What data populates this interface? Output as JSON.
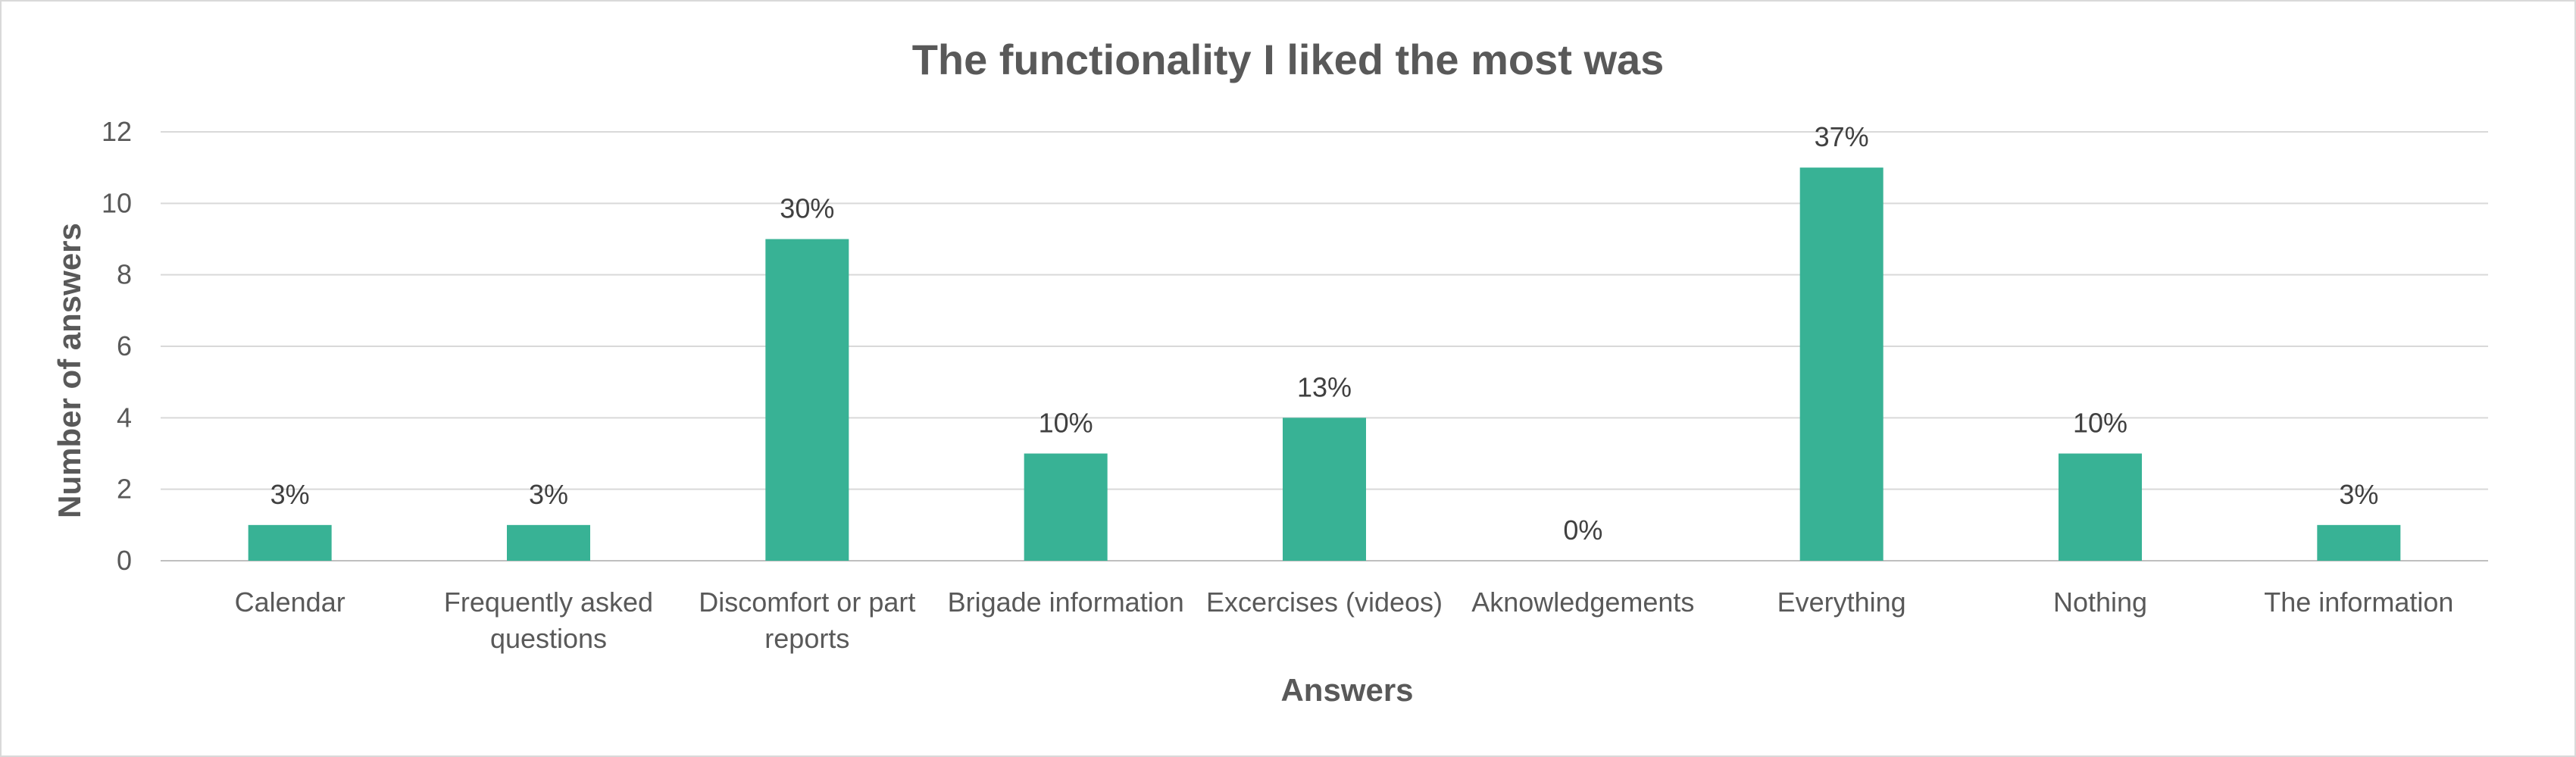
{
  "chart_data": {
    "type": "bar",
    "title": "The functionality I liked the most was",
    "xlabel": "Answers",
    "ylabel": "Number of answers",
    "ylim": [
      0,
      12
    ],
    "yticks": [
      "0",
      "2",
      "4",
      "6",
      "8",
      "10",
      "12"
    ],
    "grid": true,
    "legend": "none",
    "bar_color": "#38B295",
    "categories": [
      [
        "Calendar"
      ],
      [
        "Frequently asked",
        "questions"
      ],
      [
        "Discomfort or part",
        "reports"
      ],
      [
        "Brigade information"
      ],
      [
        "Excercises (videos)"
      ],
      [
        "Aknowledgements"
      ],
      [
        "Everything"
      ],
      [
        "Nothing"
      ],
      [
        "The information"
      ]
    ],
    "values": [
      1,
      1,
      9,
      3,
      4,
      0,
      11,
      3,
      1
    ],
    "data_labels": [
      "3%",
      "3%",
      "30%",
      "10%",
      "13%",
      "0%",
      "37%",
      "10%",
      "3%"
    ]
  }
}
